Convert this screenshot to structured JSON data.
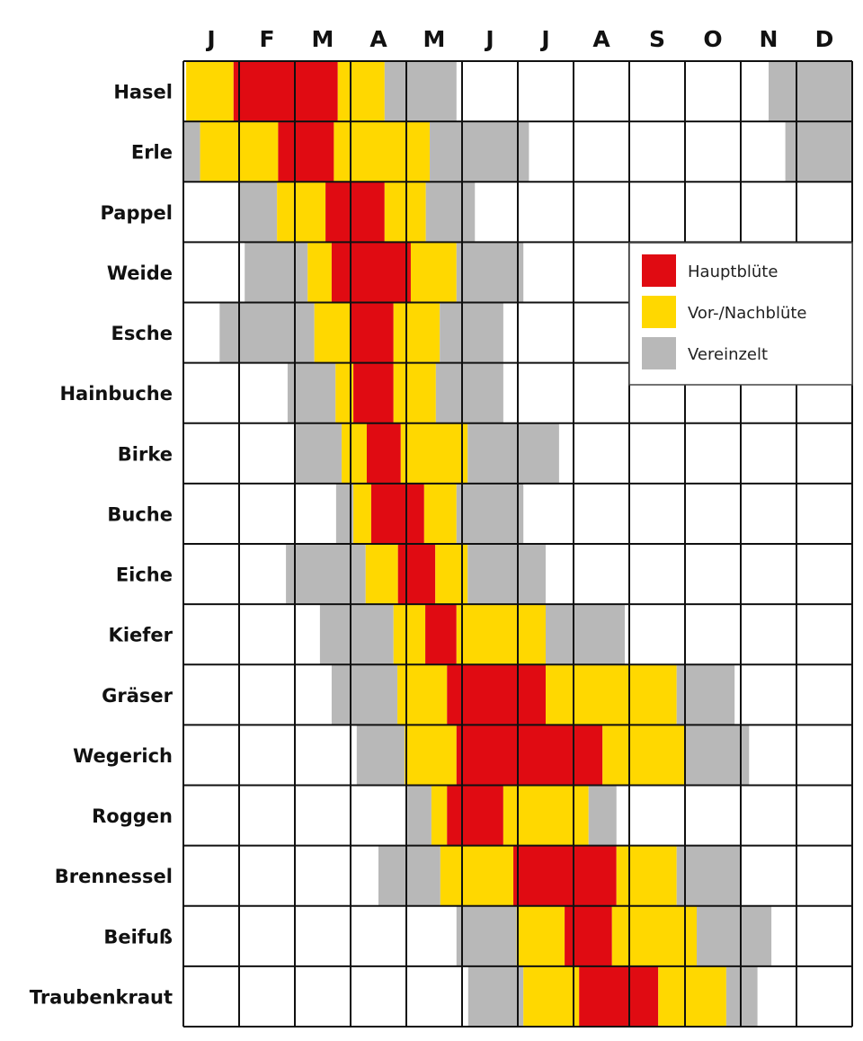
{
  "chart_data": {
    "type": "heatmap",
    "title": "",
    "xlabel": "",
    "ylabel": "",
    "x_range": [
      0,
      12
    ],
    "months": [
      "J",
      "F",
      "M",
      "A",
      "M",
      "J",
      "J",
      "A",
      "S",
      "O",
      "N",
      "D"
    ],
    "categories_legend": [
      {
        "key": "R",
        "label": "Hauptblüte",
        "color": "#e00b12"
      },
      {
        "key": "Y",
        "label": "Vor-/Nachblüte",
        "color": "#ffd800"
      },
      {
        "key": "G",
        "label": "Vereinzelt",
        "color": "#b8b8b8"
      }
    ],
    "legend_position": "right",
    "grid": true,
    "plants": [
      {
        "name": "Hasel",
        "segments": [
          [
            0.05,
            0.9,
            "Y"
          ],
          [
            0.9,
            2.77,
            "R"
          ],
          [
            2.77,
            3.61,
            "Y"
          ],
          [
            3.61,
            4.9,
            "G"
          ],
          [
            10.5,
            12,
            "G"
          ]
        ]
      },
      {
        "name": "Erle",
        "segments": [
          [
            0,
            0.3,
            "G"
          ],
          [
            0.3,
            1.7,
            "Y"
          ],
          [
            1.7,
            2.7,
            "R"
          ],
          [
            2.7,
            4.42,
            "Y"
          ],
          [
            4.42,
            6.2,
            "G"
          ],
          [
            10.8,
            12,
            "G"
          ]
        ]
      },
      {
        "name": "Pappel",
        "segments": [
          [
            1,
            1.68,
            "G"
          ],
          [
            1.68,
            2.55,
            "Y"
          ],
          [
            2.55,
            3.61,
            "R"
          ],
          [
            3.61,
            4.35,
            "Y"
          ],
          [
            4.35,
            5.23,
            "G"
          ]
        ]
      },
      {
        "name": "Weide",
        "segments": [
          [
            1.1,
            2.23,
            "G"
          ],
          [
            2.23,
            2.66,
            "Y"
          ],
          [
            2.66,
            4.08,
            "R"
          ],
          [
            4.08,
            4.9,
            "Y"
          ],
          [
            4.9,
            6.1,
            "G"
          ]
        ]
      },
      {
        "name": "Esche",
        "segments": [
          [
            0.65,
            2.35,
            "G"
          ],
          [
            2.35,
            3,
            "Y"
          ],
          [
            3,
            3.77,
            "R"
          ],
          [
            3.77,
            4.6,
            "Y"
          ],
          [
            4.6,
            5.74,
            "G"
          ]
        ]
      },
      {
        "name": "Hainbuche",
        "segments": [
          [
            1.87,
            2.73,
            "G"
          ],
          [
            2.73,
            3.05,
            "Y"
          ],
          [
            3.05,
            3.77,
            "R"
          ],
          [
            3.77,
            4.53,
            "Y"
          ],
          [
            4.53,
            5.74,
            "G"
          ]
        ]
      },
      {
        "name": "Birke",
        "segments": [
          [
            2,
            2.84,
            "G"
          ],
          [
            2.84,
            3.29,
            "Y"
          ],
          [
            3.29,
            3.9,
            "R"
          ],
          [
            3.9,
            5.1,
            "Y"
          ],
          [
            5.1,
            6.74,
            "G"
          ]
        ]
      },
      {
        "name": "Buche",
        "segments": [
          [
            2.74,
            3.05,
            "G"
          ],
          [
            3.05,
            3.37,
            "Y"
          ],
          [
            3.37,
            4.32,
            "R"
          ],
          [
            4.32,
            4.9,
            "Y"
          ],
          [
            4.9,
            6.1,
            "G"
          ]
        ]
      },
      {
        "name": "Eiche",
        "segments": [
          [
            1.84,
            3.27,
            "G"
          ],
          [
            3.27,
            3.85,
            "Y"
          ],
          [
            3.85,
            4.52,
            "R"
          ],
          [
            4.52,
            5.1,
            "Y"
          ],
          [
            5.1,
            6.5,
            "G"
          ]
        ]
      },
      {
        "name": "Kiefer",
        "segments": [
          [
            2.45,
            3.77,
            "G"
          ],
          [
            3.77,
            4.34,
            "Y"
          ],
          [
            4.34,
            4.9,
            "R"
          ],
          [
            4.9,
            6.5,
            "Y"
          ],
          [
            6.5,
            7.92,
            "G"
          ]
        ]
      },
      {
        "name": "Gräser",
        "segments": [
          [
            2.66,
            3.84,
            "G"
          ],
          [
            3.84,
            4.73,
            "Y"
          ],
          [
            4.73,
            6.5,
            "R"
          ],
          [
            6.5,
            8.85,
            "Y"
          ],
          [
            8.85,
            9.89,
            "G"
          ]
        ]
      },
      {
        "name": "Wegerich",
        "segments": [
          [
            3.11,
            3.97,
            "G"
          ],
          [
            3.97,
            4.9,
            "Y"
          ],
          [
            4.9,
            7.52,
            "R"
          ],
          [
            7.52,
            9,
            "Y"
          ],
          [
            9,
            10.15,
            "G"
          ]
        ]
      },
      {
        "name": "Roggen",
        "segments": [
          [
            4.02,
            4.45,
            "G"
          ],
          [
            4.45,
            4.73,
            "Y"
          ],
          [
            4.73,
            5.74,
            "R"
          ],
          [
            5.74,
            7.27,
            "Y"
          ],
          [
            7.27,
            7.77,
            "G"
          ]
        ]
      },
      {
        "name": "Brennessel",
        "segments": [
          [
            3.5,
            4.61,
            "G"
          ],
          [
            4.61,
            5.92,
            "Y"
          ],
          [
            5.92,
            7.77,
            "R"
          ],
          [
            7.77,
            8.85,
            "Y"
          ],
          [
            8.85,
            10,
            "G"
          ]
        ]
      },
      {
        "name": "Beifuß",
        "segments": [
          [
            4.9,
            5.98,
            "G"
          ],
          [
            5.98,
            6.84,
            "Y"
          ],
          [
            6.84,
            7.69,
            "R"
          ],
          [
            7.69,
            9.21,
            "Y"
          ],
          [
            9.21,
            10.55,
            "G"
          ]
        ]
      },
      {
        "name": "Traubenkraut",
        "segments": [
          [
            5.11,
            6.1,
            "G"
          ],
          [
            6.1,
            7.1,
            "Y"
          ],
          [
            7.1,
            8.52,
            "R"
          ],
          [
            8.52,
            9.74,
            "Y"
          ],
          [
            9.74,
            10.3,
            "G"
          ]
        ]
      }
    ]
  }
}
